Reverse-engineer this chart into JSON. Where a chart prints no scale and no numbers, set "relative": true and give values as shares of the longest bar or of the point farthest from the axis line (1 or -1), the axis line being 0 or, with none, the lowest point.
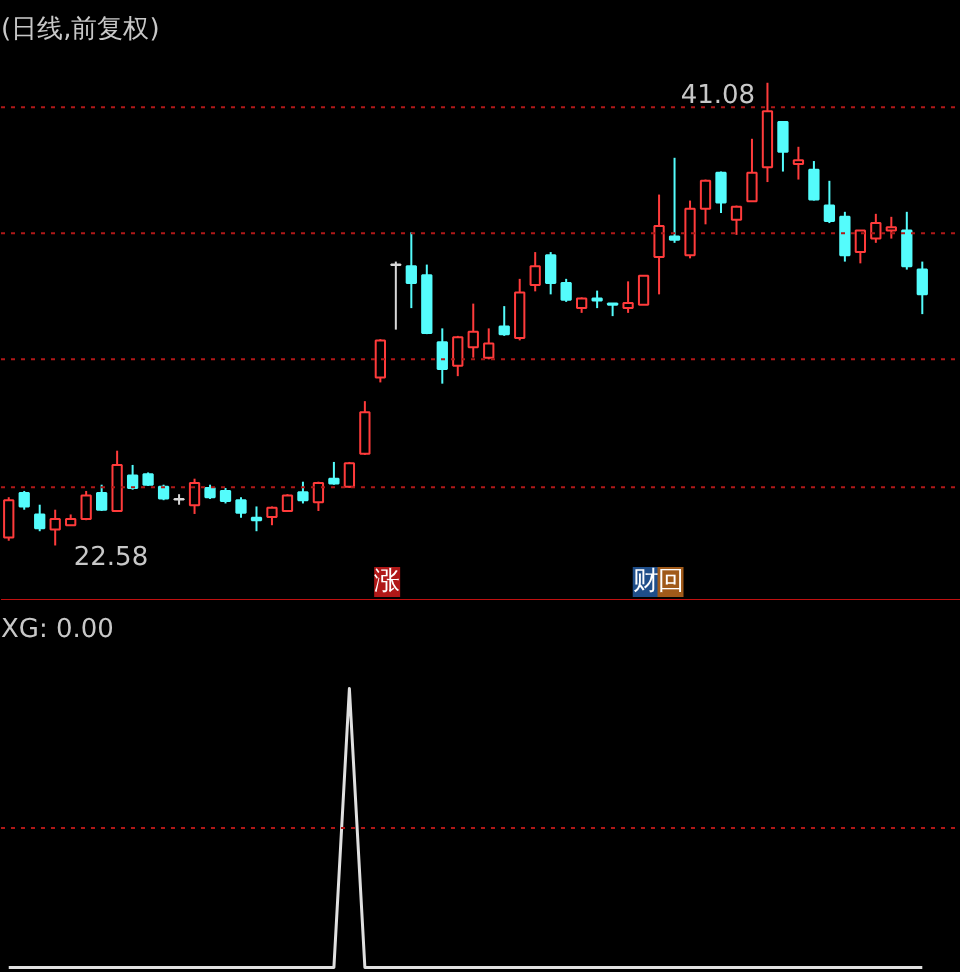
{
  "chart_data": [
    {
      "type": "candlestick",
      "title": "(日线,前复权)",
      "categories": [
        null,
        null,
        null,
        null,
        null,
        null,
        null,
        null,
        null,
        null,
        null,
        null,
        null,
        null,
        null,
        null,
        null,
        null,
        null,
        null,
        null,
        null,
        null,
        null,
        null,
        null,
        null,
        null,
        null,
        null,
        null,
        null,
        null,
        null,
        null,
        null,
        null,
        null,
        null,
        null,
        null,
        null,
        null,
        null,
        null,
        null,
        null,
        null,
        null,
        null,
        null,
        null,
        null,
        null,
        null,
        null,
        null,
        null,
        null,
        null
      ],
      "ohlc": [
        [
          22.9,
          24.51,
          22.77,
          24.39
        ],
        [
          24.68,
          24.76,
          24.01,
          24.14
        ],
        [
          23.82,
          24.21,
          23.15,
          23.27
        ],
        [
          23.22,
          24.01,
          22.58,
          23.64
        ],
        [
          23.39,
          23.82,
          23.39,
          23.64
        ],
        [
          23.64,
          24.76,
          23.59,
          24.58
        ],
        [
          24.68,
          25.01,
          23.96,
          24.01
        ],
        [
          23.96,
          26.37,
          23.96,
          25.8
        ],
        [
          25.38,
          25.8,
          24.81,
          24.88
        ],
        [
          25.43,
          25.5,
          24.96,
          25.01
        ],
        [
          24.93,
          25.01,
          24.39,
          24.46
        ],
        [
          24.44,
          24.63,
          24.21,
          24.44
        ],
        [
          24.19,
          25.25,
          23.84,
          25.08
        ],
        [
          24.88,
          25.01,
          24.44,
          24.51
        ],
        [
          24.76,
          24.88,
          24.26,
          24.36
        ],
        [
          24.39,
          24.51,
          23.69,
          23.89
        ],
        [
          23.69,
          24.14,
          23.15,
          23.59
        ],
        [
          23.72,
          24.14,
          23.39,
          24.09
        ],
        [
          23.96,
          24.63,
          23.96,
          24.58
        ],
        [
          24.71,
          25.13,
          24.26,
          24.39
        ],
        [
          24.31,
          25.13,
          23.96,
          25.08
        ],
        [
          25.25,
          25.92,
          25.01,
          25.06
        ],
        [
          24.93,
          25.92,
          24.88,
          25.87
        ],
        [
          26.25,
          28.35,
          26.2,
          27.91
        ],
        [
          29.3,
          30.83,
          29.1,
          30.78
        ],
        [
          33.81,
          33.93,
          31.21,
          33.81
        ],
        [
          33.74,
          35.1,
          32.07,
          33.07
        ],
        [
          33.38,
          33.81,
          31.03,
          31.08
        ],
        [
          30.71,
          31.26,
          29.05,
          29.64
        ],
        [
          29.77,
          30.96,
          29.35,
          30.91
        ],
        [
          30.51,
          32.25,
          30.09,
          31.13
        ],
        [
          30.09,
          31.26,
          30.02,
          30.66
        ],
        [
          31.33,
          32.15,
          30.96,
          31.03
        ],
        [
          30.88,
          33.24,
          30.78,
          32.69
        ],
        [
          32.99,
          34.31,
          32.74,
          33.74
        ],
        [
          34.18,
          34.31,
          32.62,
          33.07
        ],
        [
          33.07,
          33.24,
          32.32,
          32.4
        ],
        [
          32.07,
          32.5,
          31.88,
          32.45
        ],
        [
          32.45,
          32.77,
          32.07,
          32.37
        ],
        [
          32.25,
          32.25,
          31.75,
          32.2
        ],
        [
          32.07,
          33.14,
          31.88,
          32.27
        ],
        [
          32.2,
          33.39,
          32.2,
          33.36
        ],
        [
          34.11,
          36.61,
          32.62,
          35.35
        ],
        [
          34.93,
          38.08,
          34.68,
          34.8
        ],
        [
          34.18,
          36.37,
          34.06,
          36.04
        ],
        [
          36.04,
          37.21,
          35.42,
          37.16
        ],
        [
          37.48,
          37.53,
          35.87,
          36.29
        ],
        [
          35.6,
          36.17,
          35.0,
          36.12
        ],
        [
          36.34,
          38.84,
          36.34,
          37.48
        ],
        [
          37.7,
          41.08,
          37.11,
          39.94
        ],
        [
          39.51,
          39.51,
          37.53,
          38.32
        ],
        [
          37.83,
          38.52,
          37.21,
          37.98
        ],
        [
          37.6,
          37.95,
          36.37,
          36.41
        ],
        [
          36.17,
          37.16,
          35.47,
          35.55
        ],
        [
          35.72,
          35.92,
          33.93,
          34.18
        ],
        [
          34.31,
          35.17,
          33.86,
          35.17
        ],
        [
          34.85,
          35.84,
          34.68,
          35.47
        ],
        [
          35.17,
          35.72,
          34.85,
          35.3
        ],
        [
          35.17,
          35.92,
          33.61,
          33.74
        ],
        [
          33.61,
          33.93,
          31.83,
          32.62
        ]
      ],
      "colors": [
        "#ff3b3b",
        "#54fcfc",
        "#54fcfc",
        "#ff3b3b",
        "#ff3b3b",
        "#ff3b3b",
        "#54fcfc",
        "#ff3b3b",
        "#54fcfc",
        "#54fcfc",
        "#54fcfc",
        "#d8d8d8",
        "#ff3b3b",
        "#54fcfc",
        "#54fcfc",
        "#54fcfc",
        "#54fcfc",
        "#ff3b3b",
        "#ff3b3b",
        "#54fcfc",
        "#ff3b3b",
        "#54fcfc",
        "#ff3b3b",
        "#ff3b3b",
        "#ff3b3b",
        "#d8d8d8",
        "#54fcfc",
        "#54fcfc",
        "#54fcfc",
        "#ff3b3b",
        "#ff3b3b",
        "#ff3b3b",
        "#54fcfc",
        "#ff3b3b",
        "#ff3b3b",
        "#54fcfc",
        "#54fcfc",
        "#ff3b3b",
        "#54fcfc",
        "#54fcfc",
        "#ff3b3b",
        "#ff3b3b",
        "#ff3b3b",
        "#54fcfc",
        "#ff3b3b",
        "#ff3b3b",
        "#54fcfc",
        "#ff3b3b",
        "#ff3b3b",
        "#ff3b3b",
        "#54fcfc",
        "#ff3b3b",
        "#54fcfc",
        "#54fcfc",
        "#54fcfc",
        "#ff3b3b",
        "#ff3b3b",
        "#ff3b3b",
        "#54fcfc",
        "#54fcfc"
      ],
      "annotations": [
        "41.08",
        "22.58",
        "涨",
        "财",
        "回"
      ],
      "ref_lines": [
        {
          "axis": "y",
          "value": 40.1,
          "color": "#b01818",
          "line_style": "dotted"
        },
        {
          "axis": "y",
          "value": 35.06,
          "color": "#b01818",
          "line_style": "dotted"
        },
        {
          "axis": "y",
          "value": 30.03,
          "color": "#b01818",
          "line_style": "dotted"
        },
        {
          "axis": "y",
          "value": 24.91,
          "color": "#b01818",
          "line_style": "dotted"
        }
      ]
    },
    {
      "type": "line",
      "title": "XG: 0.00",
      "relative": true,
      "categories": [
        null,
        null,
        null,
        null,
        null,
        null,
        null,
        null,
        null,
        null,
        null,
        null,
        null,
        null,
        null,
        null,
        null,
        null,
        null,
        null,
        null,
        null,
        null,
        null,
        null,
        null,
        null,
        null,
        null,
        null,
        null,
        null,
        null,
        null,
        null,
        null,
        null,
        null,
        null,
        null,
        null,
        null,
        null,
        null,
        null,
        null,
        null,
        null,
        null,
        null,
        null,
        null,
        null,
        null,
        null,
        null,
        null,
        null,
        null,
        null
      ],
      "series": [
        {
          "color": "#e0e0e0",
          "values": [
            0,
            0,
            0,
            0,
            0,
            0,
            0,
            0,
            0,
            0,
            0,
            0,
            0,
            0,
            0,
            0,
            0,
            0,
            0,
            0,
            0,
            0,
            1,
            0,
            0,
            0,
            0,
            0,
            0,
            0,
            0,
            0,
            0,
            0,
            0,
            0,
            0,
            0,
            0,
            0,
            0,
            0,
            0,
            0,
            0,
            0,
            0,
            0,
            0,
            0,
            0,
            0,
            0,
            0,
            0,
            0,
            0,
            0,
            0,
            0
          ]
        }
      ],
      "ref_lines": [
        {
          "axis": "y",
          "value": 0.5,
          "color": "#b01818",
          "line_style": "dotted"
        }
      ]
    }
  ]
}
